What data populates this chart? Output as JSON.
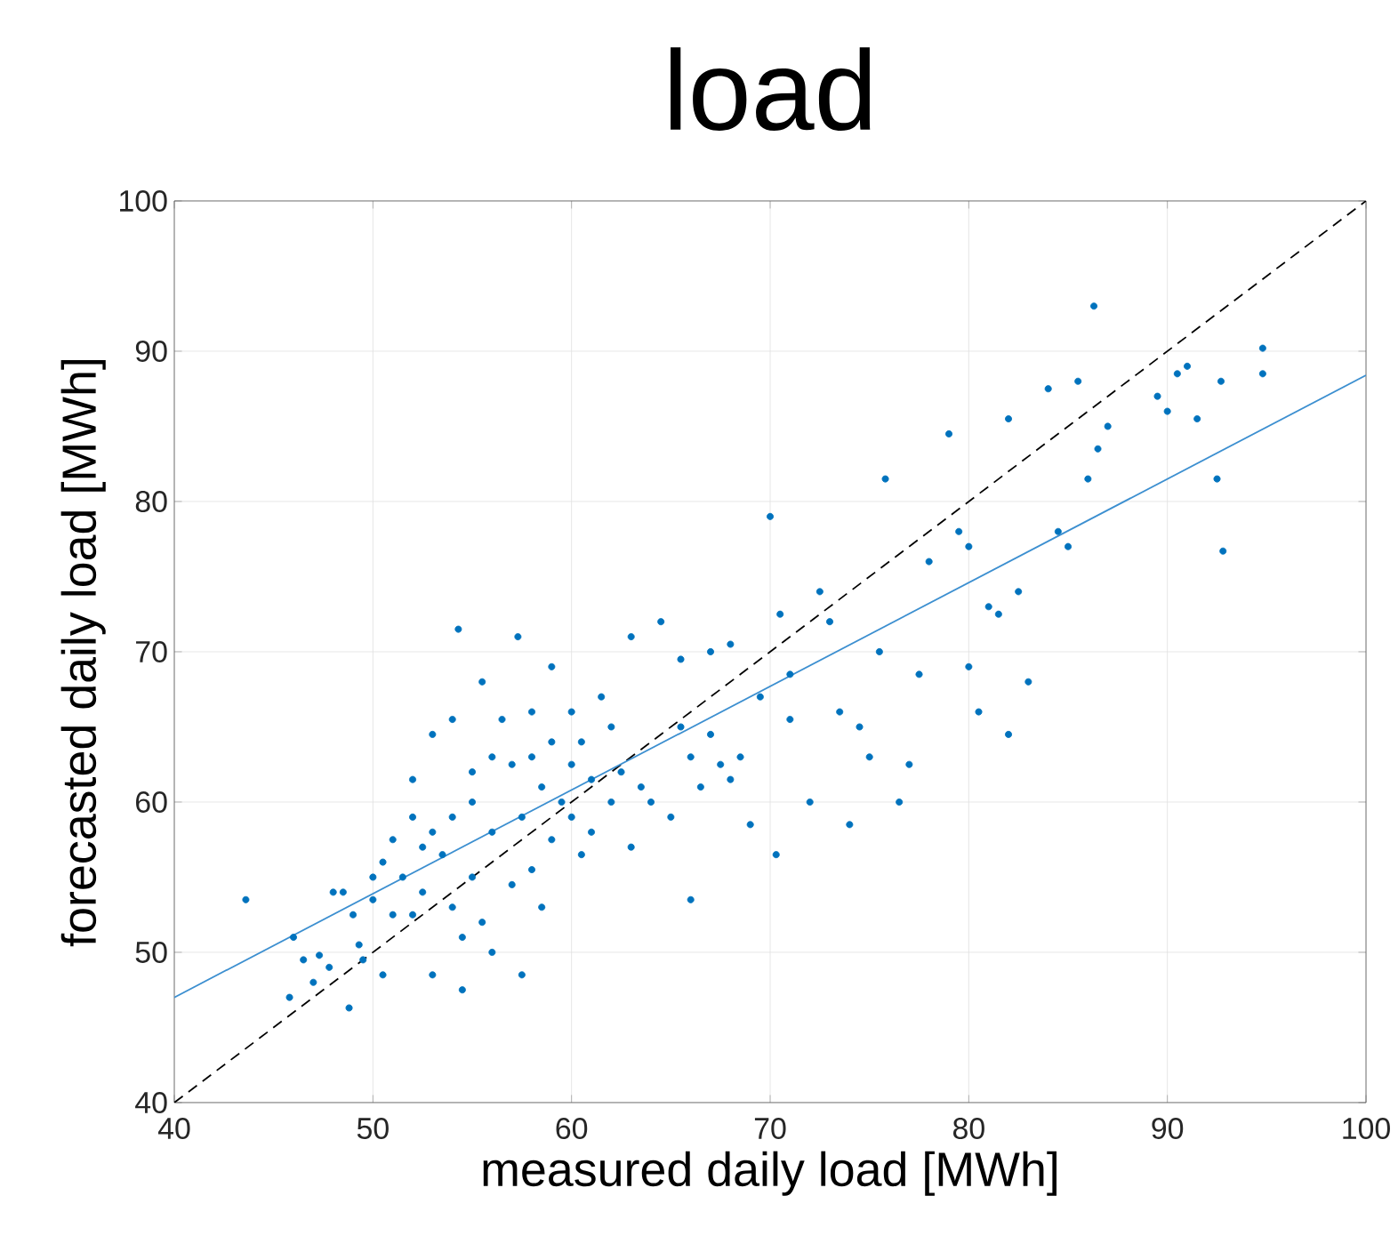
{
  "chart_data": {
    "type": "scatter",
    "title": "load",
    "xlabel": "measured daily load [MWh]",
    "ylabel": "forecasted daily load [MWh]",
    "xlim": [
      40,
      100
    ],
    "ylim": [
      40,
      100
    ],
    "xticks": [
      40,
      50,
      60,
      70,
      80,
      90,
      100
    ],
    "yticks": [
      40,
      50,
      60,
      70,
      80,
      90,
      100
    ],
    "grid": true,
    "marker": "circle",
    "series": [
      {
        "color": "#0072bd",
        "x": [
          43.6,
          45.8,
          46,
          46.5,
          47,
          47.3,
          47.8,
          48,
          48.5,
          48.8,
          49,
          49.3,
          49.5,
          50,
          50,
          50.5,
          50.5,
          51,
          51,
          51.5,
          52,
          52,
          52,
          52.5,
          52.5,
          53,
          53,
          53,
          53.5,
          54,
          54,
          54,
          54.3,
          54.5,
          54.5,
          55,
          55,
          55,
          55.5,
          55.5,
          56,
          56,
          56,
          56.5,
          57,
          57,
          57.3,
          57.5,
          57.5,
          58,
          58,
          58,
          58.5,
          58.5,
          59,
          59,
          59,
          59.5,
          60,
          60,
          60,
          60.5,
          60.5,
          61,
          61,
          61.5,
          62,
          62,
          62.5,
          63,
          63,
          63.5,
          64,
          64.5,
          65,
          65.5,
          65.5,
          66,
          66,
          66.5,
          67,
          67,
          67.5,
          68,
          68,
          68.5,
          69,
          69.5,
          70,
          70.5,
          70.3,
          71,
          71,
          72,
          72.5,
          73,
          73.5,
          74,
          74.5,
          75,
          75.5,
          75.8,
          76.5,
          77,
          77.5,
          78,
          79,
          79.5,
          80,
          80,
          80.5,
          81,
          81.5,
          82,
          82,
          82.5,
          83,
          84,
          84.5,
          85,
          85.5,
          86,
          86.3,
          86.5,
          87,
          89.5,
          90,
          90.5,
          91,
          91.5,
          92.5,
          92.7,
          92.8,
          94.8,
          94.8
        ],
        "values": [
          53.5,
          47,
          51,
          49.5,
          48,
          49.8,
          49,
          54,
          54,
          46.3,
          52.5,
          50.5,
          49.5,
          53.5,
          55,
          56,
          48.5,
          57.5,
          52.5,
          55,
          59,
          61.5,
          52.5,
          57,
          54,
          58,
          64.5,
          48.5,
          56.5,
          59,
          53,
          65.5,
          71.5,
          47.5,
          51,
          62,
          55,
          60,
          68,
          52,
          63,
          58,
          50,
          65.5,
          54.5,
          62.5,
          71,
          59,
          48.5,
          66,
          63,
          55.5,
          61,
          53,
          69,
          64,
          57.5,
          60,
          66,
          62.5,
          59,
          56.5,
          64,
          61.5,
          58,
          67,
          65,
          60,
          62,
          57,
          71,
          61,
          60,
          72,
          59,
          65,
          69.5,
          53.5,
          63,
          61,
          70,
          64.5,
          62.5,
          70.5,
          61.5,
          63,
          58.5,
          67,
          79,
          72.5,
          56.5,
          68.5,
          65.5,
          60,
          74,
          72,
          66,
          58.5,
          65,
          63,
          70,
          81.5,
          60,
          62.5,
          68.5,
          76,
          84.5,
          78,
          77,
          69,
          66,
          73,
          72.5,
          85.5,
          64.5,
          74,
          68,
          87.5,
          78,
          77,
          88,
          81.5,
          93,
          83.5,
          85,
          87,
          86,
          88.5,
          89,
          85.5,
          81.5,
          88,
          76.7,
          88.5,
          90.2
        ]
      },
      {
        "type": "line",
        "color": "#000000",
        "line_style": "dashed",
        "marker": "none",
        "x": [
          40,
          100
        ],
        "values": [
          40,
          100
        ]
      },
      {
        "type": "line",
        "color": "#3c8fd0",
        "line_style": "solid",
        "marker": "none",
        "x": [
          40,
          100
        ],
        "values": [
          47,
          88.4
        ]
      }
    ]
  }
}
